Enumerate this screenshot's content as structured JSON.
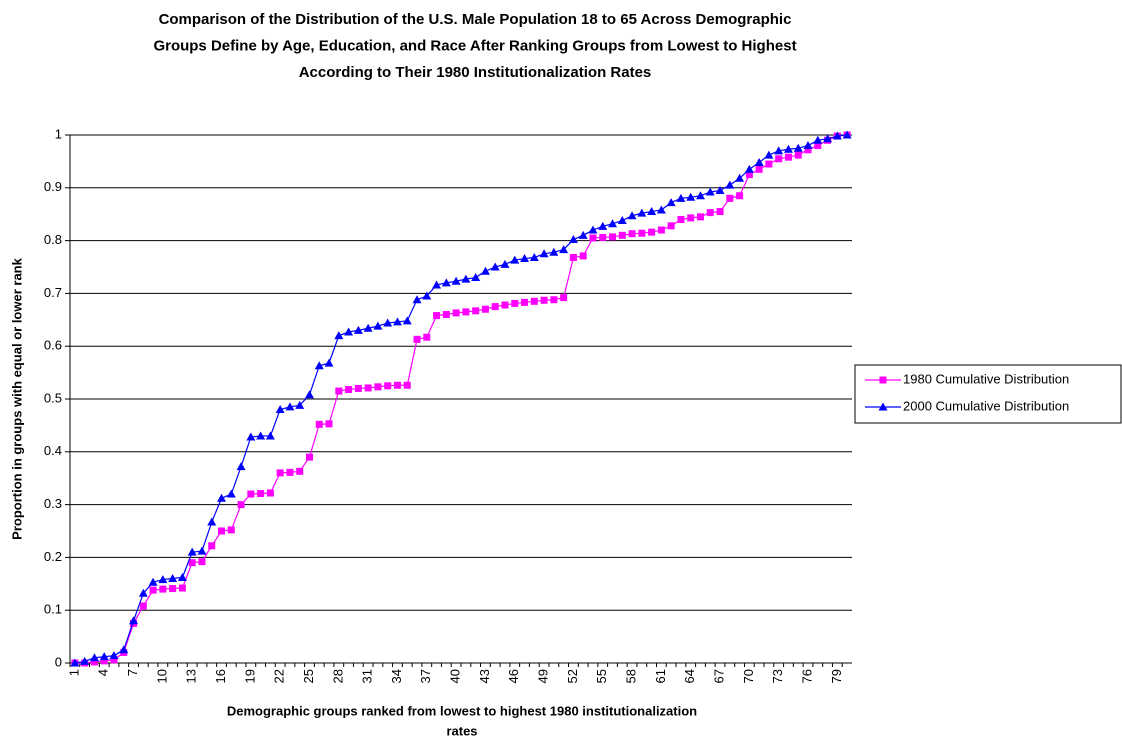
{
  "chart_data": {
    "type": "line",
    "title": [
      "Comparison of the Distribution of the U.S. Male Population 18 to 65 Across Demographic",
      "Groups Define by Age, Education, and Race After Ranking Groups from Lowest to Highest",
      "According to Their 1980 Institutionalization Rates"
    ],
    "x_label": [
      "Demographic groups ranked from lowest to highest 1980 institutionalization",
      "rates"
    ],
    "y_label": "Proportion in groups with equal or lower rank",
    "categories": [
      "1",
      null,
      null,
      "4",
      null,
      null,
      "7",
      null,
      null,
      "10",
      null,
      null,
      "13",
      null,
      null,
      "16",
      null,
      null,
      "19",
      null,
      null,
      "22",
      null,
      null,
      "25",
      null,
      null,
      "28",
      null,
      null,
      "31",
      null,
      null,
      "34",
      null,
      null,
      "37",
      null,
      null,
      "40",
      null,
      null,
      "43",
      null,
      null,
      "46",
      null,
      null,
      "49",
      null,
      null,
      "52",
      null,
      null,
      "55",
      null,
      null,
      "58",
      null,
      null,
      "61",
      null,
      null,
      "64",
      null,
      null,
      "67",
      null,
      null,
      "70",
      null,
      null,
      "73",
      null,
      null,
      "76",
      null,
      null,
      "79",
      null
    ],
    "series": [
      {
        "name": "1980 Cumulative Distribution",
        "color": "#ff00ff",
        "marker": "square",
        "values": [
          0.0,
          0.0,
          0.002,
          0.004,
          0.006,
          0.02,
          0.075,
          0.108,
          0.138,
          0.14,
          0.141,
          0.142,
          0.19,
          0.192,
          0.222,
          0.25,
          0.252,
          0.3,
          0.32,
          0.321,
          0.322,
          0.36,
          0.361,
          0.363,
          0.39,
          0.452,
          0.453,
          0.515,
          0.518,
          0.52,
          0.521,
          0.523,
          0.525,
          0.526,
          0.526,
          0.613,
          0.617,
          0.658,
          0.66,
          0.663,
          0.665,
          0.667,
          0.67,
          0.675,
          0.678,
          0.681,
          0.683,
          0.685,
          0.687,
          0.688,
          0.692,
          0.768,
          0.771,
          0.805,
          0.806,
          0.807,
          0.81,
          0.813,
          0.814,
          0.816,
          0.82,
          0.828,
          0.84,
          0.843,
          0.845,
          0.853,
          0.855,
          0.88,
          0.885,
          0.925,
          0.935,
          0.945,
          0.955,
          0.958,
          0.962,
          0.972,
          0.98,
          0.99,
          0.998,
          1.0
        ]
      },
      {
        "name": "2000 Cumulative Distribution",
        "color": "#0000ff",
        "marker": "triangle",
        "values": [
          0.0,
          0.003,
          0.01,
          0.012,
          0.014,
          0.025,
          0.08,
          0.132,
          0.153,
          0.158,
          0.16,
          0.162,
          0.21,
          0.212,
          0.267,
          0.312,
          0.32,
          0.372,
          0.428,
          0.43,
          0.43,
          0.48,
          0.485,
          0.488,
          0.508,
          0.563,
          0.568,
          0.62,
          0.627,
          0.63,
          0.634,
          0.638,
          0.644,
          0.646,
          0.648,
          0.688,
          0.695,
          0.716,
          0.72,
          0.723,
          0.727,
          0.73,
          0.742,
          0.75,
          0.755,
          0.763,
          0.766,
          0.768,
          0.775,
          0.778,
          0.783,
          0.802,
          0.81,
          0.82,
          0.827,
          0.832,
          0.838,
          0.847,
          0.852,
          0.855,
          0.858,
          0.872,
          0.88,
          0.882,
          0.885,
          0.892,
          0.895,
          0.905,
          0.918,
          0.935,
          0.948,
          0.962,
          0.97,
          0.973,
          0.975,
          0.98,
          0.99,
          0.993,
          0.998,
          1.0
        ]
      }
    ],
    "ylim": [
      0,
      1
    ],
    "yticks": [
      0,
      0.1,
      0.2,
      0.3,
      0.4,
      0.5,
      0.6,
      0.7,
      0.8,
      0.9,
      1
    ],
    "grid": true,
    "legend": "right"
  }
}
